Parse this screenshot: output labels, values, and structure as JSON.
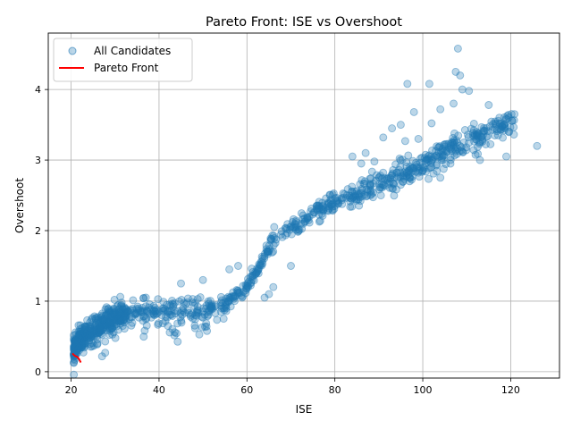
{
  "chart_data": {
    "type": "scatter",
    "title": "Pareto Front: ISE vs Overshoot",
    "xlabel": "ISE",
    "ylabel": "Overshoot",
    "xlim": [
      14.8,
      131.1
    ],
    "ylim": [
      -0.09,
      4.8
    ],
    "xticks": [
      20,
      40,
      60,
      80,
      100,
      120
    ],
    "yticks": [
      0,
      1,
      2,
      3,
      4
    ],
    "grid": true,
    "legend": {
      "placement": "top-left",
      "entries": [
        "All Candidates",
        "Pareto Front"
      ]
    },
    "colors": {
      "candidates": "#1f77b4",
      "pareto": "#ff0000",
      "grid": "#b0b0b0"
    },
    "series": [
      {
        "name": "All Candidates",
        "kind": "scatter",
        "trend": [
          [
            20.5,
            0.25
          ],
          [
            21,
            0.35
          ],
          [
            22,
            0.45
          ],
          [
            24,
            0.55
          ],
          [
            26,
            0.65
          ],
          [
            28,
            0.72
          ],
          [
            31,
            0.8
          ],
          [
            35,
            0.85
          ],
          [
            40,
            0.86
          ],
          [
            45,
            0.87
          ],
          [
            50,
            0.88
          ],
          [
            53,
            0.9
          ],
          [
            56,
            1.0
          ],
          [
            59,
            1.15
          ],
          [
            61,
            1.3
          ],
          [
            63,
            1.5
          ],
          [
            65,
            1.75
          ],
          [
            68,
            1.95
          ],
          [
            72,
            2.1
          ],
          [
            76,
            2.25
          ],
          [
            80,
            2.38
          ],
          [
            85,
            2.52
          ],
          [
            90,
            2.65
          ],
          [
            95,
            2.8
          ],
          [
            100,
            2.95
          ],
          [
            105,
            3.1
          ],
          [
            110,
            3.25
          ],
          [
            115,
            3.4
          ],
          [
            120,
            3.55
          ]
        ],
        "outliers": [
          [
            108,
            4.58
          ],
          [
            107.5,
            4.25
          ],
          [
            108.5,
            4.2
          ],
          [
            109,
            4.0
          ],
          [
            110.5,
            3.98
          ],
          [
            96.5,
            4.08
          ],
          [
            101.5,
            4.08
          ],
          [
            98,
            3.68
          ],
          [
            104,
            3.72
          ],
          [
            107,
            3.8
          ],
          [
            115,
            3.78
          ],
          [
            102,
            3.52
          ],
          [
            95,
            3.5
          ],
          [
            93,
            3.45
          ],
          [
            99,
            3.3
          ],
          [
            126,
            3.2
          ],
          [
            113,
            3.0
          ],
          [
            119,
            3.05
          ],
          [
            91,
            3.32
          ],
          [
            96,
            3.27
          ],
          [
            84,
            3.05
          ],
          [
            87,
            3.1
          ],
          [
            86,
            2.95
          ],
          [
            89,
            2.98
          ],
          [
            58,
            1.5
          ],
          [
            56,
            1.45
          ],
          [
            70,
            1.5
          ],
          [
            65,
            1.1
          ],
          [
            50,
            1.3
          ],
          [
            45,
            1.25
          ],
          [
            37,
            1.05
          ],
          [
            42,
            0.65
          ],
          [
            64,
            1.05
          ],
          [
            66,
            1.2
          ],
          [
            95,
            2.65
          ],
          [
            97,
            2.7
          ],
          [
            100,
            2.85
          ],
          [
            104,
            2.75
          ]
        ]
      },
      {
        "name": "Pareto Front",
        "kind": "line",
        "points": [
          [
            20.3,
            0.26
          ],
          [
            20.6,
            0.24
          ],
          [
            21.0,
            0.22
          ],
          [
            21.4,
            0.21
          ],
          [
            21.8,
            0.18
          ],
          [
            22.2,
            0.13
          ]
        ]
      }
    ]
  }
}
